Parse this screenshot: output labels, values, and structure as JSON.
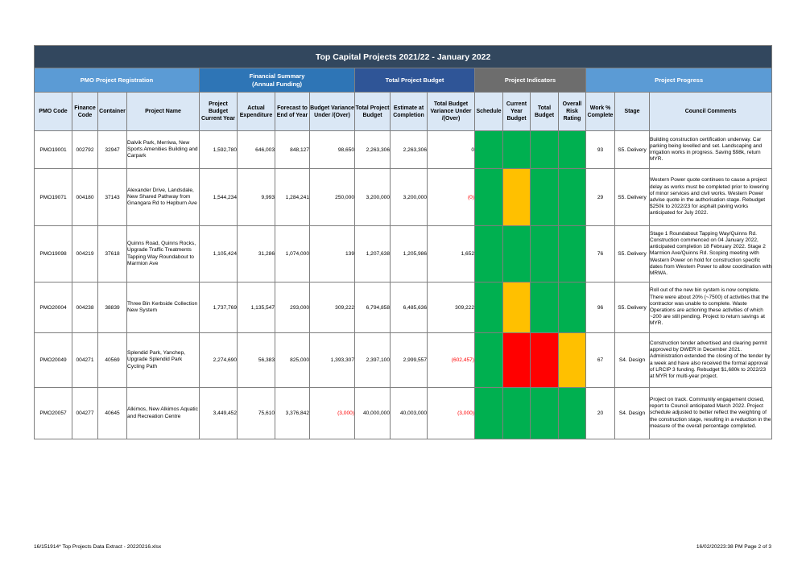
{
  "title": "Top Capital Projects 2021/22 - January 2022",
  "groups": {
    "pmo": "PMO Project Registration",
    "financial": "Financial Summary\n(Annual Funding)",
    "total_budget": "Total Project Budget",
    "indicators": "Project Indicators",
    "progress": "Project Progress"
  },
  "columns": {
    "pmo_code": "PMO Code",
    "finance_code": "Finance Code",
    "container": "Container",
    "project_name": "Project Name",
    "project_budget": "Project Budget Current Year",
    "actual": "Actual Expenditure",
    "forecast": "Forecast to End of Year",
    "budget_variance": "Budget Variance Under /(Over)",
    "total_budget": "Total Project Budget",
    "estimate": "Estimate at Completion",
    "total_variance": "Total Budget Variance Under /(Over)",
    "schedule": "Schedule",
    "current_year_budget": "Current Year Budget",
    "total_budget_ind": "Total Budget",
    "risk": "Overall Risk Rating",
    "work_pct": "Work % Complete",
    "stage": "Stage",
    "comments": "Council Comments"
  },
  "status_colors": {
    "green": "#00b050",
    "amber": "#ffc000",
    "red": "#ff0000"
  },
  "rows": [
    {
      "pmo_code": "PMO19001",
      "finance_code": "002792",
      "container": "32947",
      "project_name": "Dalvik Park, Merriwa, New Sports Amenities Building and Carpark",
      "project_budget": "1,592,780",
      "actual": "646,003",
      "forecast": "848,127",
      "budget_variance": "98,650",
      "budget_variance_neg": false,
      "total_budget": "2,263,306",
      "estimate": "2,263,306",
      "total_variance": "0",
      "total_variance_neg": false,
      "indicators": [
        "green",
        "green",
        "green",
        "green"
      ],
      "work_pct": "93",
      "stage": "S5. Delivery",
      "comments": "Building construction certification underway. Car parking being levelled and set. Landscaping and irrigation works in progress. Saving $98k, return MYR."
    },
    {
      "pmo_code": "PMO19071",
      "finance_code": "004180",
      "container": "37143",
      "project_name": "Alexander Drive, Landsdale, New Shared Pathway from Gnangara Rd to Hepburn Ave",
      "project_budget": "1,544,234",
      "actual": "9,993",
      "forecast": "1,284,241",
      "budget_variance": "250,000",
      "budget_variance_neg": false,
      "total_budget": "3,200,000",
      "estimate": "3,200,000",
      "total_variance": "(0)",
      "total_variance_neg": true,
      "indicators": [
        "green",
        "amber",
        "green",
        "green"
      ],
      "work_pct": "29",
      "stage": "S5. Delivery",
      "comments": "Western Power quote continues to cause a project delay as works must be completed prior to lowering of minor services and civil works. Western Power advise quote in the authorisation stage. Rebudget $250k to 2022/23 for asphalt paving works anticipated for July 2022."
    },
    {
      "pmo_code": "PMO19098",
      "finance_code": "004219",
      "container": "37618",
      "project_name": "Quinns Road, Quinns Rocks, Upgrade Traffic Treatments Tapping Way Roundabout to Marmion Ave",
      "project_budget": "1,105,424",
      "actual": "31,286",
      "forecast": "1,074,000",
      "budget_variance": "139",
      "budget_variance_neg": false,
      "total_budget": "1,207,638",
      "estimate": "1,205,986",
      "total_variance": "1,652",
      "total_variance_neg": false,
      "indicators": [
        "green",
        "green",
        "green",
        "green"
      ],
      "work_pct": "76",
      "stage": "S5. Delivery",
      "comments": "Stage 1 Roundabout Tapping Way/Quinns Rd. Construction commenced on 04 January 2022, anticipated completion 18 February 2022. Stage 2 Marmion Ave/Quinns Rd. Scoping meeting with Western Power on hold for construction specific dates from Western Power to allow coordination with MRWA."
    },
    {
      "pmo_code": "PMO20004",
      "finance_code": "004238",
      "container": "38839",
      "project_name": "Three Bin Kerbside Collection New System",
      "project_budget": "1,737,769",
      "actual": "1,135,547",
      "forecast": "293,000",
      "budget_variance": "309,222",
      "budget_variance_neg": false,
      "total_budget": "6,794,858",
      "estimate": "6,485,636",
      "total_variance": "309,222",
      "total_variance_neg": false,
      "indicators": [
        "green",
        "amber",
        "green",
        "green"
      ],
      "work_pct": "96",
      "stage": "S5. Delivery",
      "comments": "Roll out of the new bin system is now complete. There were about 20% (~7500) of activities that the contractor was unable to complete. Waste Operations are actioning these activities of which ~200 are still pending. Project to return savings at MYR."
    },
    {
      "pmo_code": "PMO20049",
      "finance_code": "004271",
      "container": "40569",
      "project_name": "Splendid Park, Yanchep, Upgrade Splendid Park Cycling Path",
      "project_budget": "2,274,690",
      "actual": "56,383",
      "forecast": "825,000",
      "budget_variance": "1,393,307",
      "budget_variance_neg": false,
      "total_budget": "2,397,100",
      "estimate": "2,999,557",
      "total_variance": "(602,457)",
      "total_variance_neg": true,
      "indicators": [
        "green",
        "red",
        "red",
        "amber"
      ],
      "work_pct": "67",
      "stage": "S4. Design",
      "comments": "Construction tender advertised and clearing permit approved by DWER in December 2021. Administration extended the closing of the tender by a week and have also received the formal approval of LRCIP 3 funding. Rebudget $1,680k to 2022/23 at MYR for multi-year project."
    },
    {
      "pmo_code": "PMO20057",
      "finance_code": "004277",
      "container": "40645",
      "project_name": "Alkimos, New Alkimos Aquatic and Recreation Centre",
      "project_budget": "3,449,452",
      "actual": "75,610",
      "forecast": "3,376,842",
      "budget_variance": "(3,000)",
      "budget_variance_neg": true,
      "total_budget": "40,000,000",
      "estimate": "40,003,000",
      "total_variance": "(3,000)",
      "total_variance_neg": true,
      "indicators": [
        "green",
        "green",
        "green",
        "green"
      ],
      "work_pct": "20",
      "stage": "S4. Design",
      "comments": "Project on track. Community engagement closed, report to Council anticipated March 2022. Project schedule adjusted to better reflect the weighting of the construction stage, resulting in a reduction in the measure of the overall percentage completed."
    }
  ],
  "footer": {
    "left": "16/151914*  Top Projects Data Extract - 20220216.xlsx",
    "right": "16/02/20223:38 PM    Page 2 of 3"
  }
}
